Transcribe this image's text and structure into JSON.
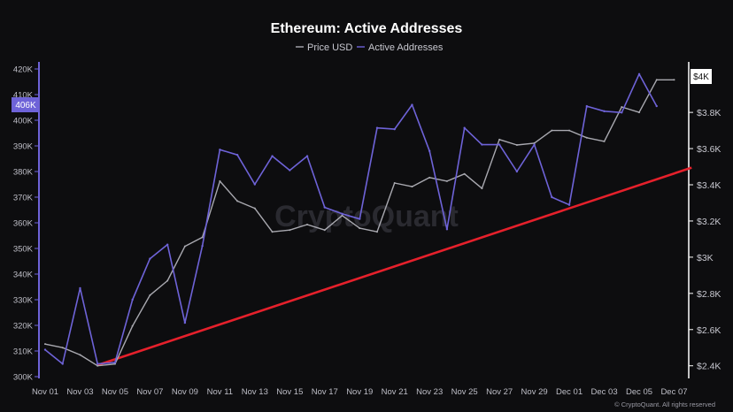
{
  "chart_data": {
    "type": "line",
    "title": "Ethereum: Active Addresses",
    "legend": {
      "placement": "top-center",
      "items": [
        "Price USD",
        "Active Addresses"
      ]
    },
    "x": [
      "Nov 01",
      "Nov 02",
      "Nov 03",
      "Nov 04",
      "Nov 05",
      "Nov 06",
      "Nov 07",
      "Nov 08",
      "Nov 09",
      "Nov 10",
      "Nov 11",
      "Nov 12",
      "Nov 13",
      "Nov 14",
      "Nov 15",
      "Nov 16",
      "Nov 17",
      "Nov 18",
      "Nov 19",
      "Nov 20",
      "Nov 21",
      "Nov 22",
      "Nov 23",
      "Nov 24",
      "Nov 25",
      "Nov 26",
      "Nov 27",
      "Nov 28",
      "Nov 29",
      "Nov 30",
      "Dec 01",
      "Dec 02",
      "Dec 03",
      "Dec 04",
      "Dec 05",
      "Dec 06",
      "Dec 07"
    ],
    "x_tick_labels": [
      "Nov 01",
      "Nov 03",
      "Nov 05",
      "Nov 07",
      "Nov 09",
      "Nov 11",
      "Nov 13",
      "Nov 15",
      "Nov 17",
      "Nov 19",
      "Nov 21",
      "Nov 23",
      "Nov 25",
      "Nov 27",
      "Nov 29",
      "Dec 01",
      "Dec 03",
      "Dec 05",
      "Dec 07"
    ],
    "series": [
      {
        "name": "Active Addresses",
        "axis": "left",
        "color": "#6e63d8",
        "values": [
          310500,
          305000,
          334500,
          305000,
          305500,
          330000,
          346000,
          351500,
          321000,
          351000,
          388500,
          386500,
          375000,
          386000,
          380500,
          386000,
          366000,
          363500,
          361500,
          397000,
          396500,
          406000,
          388000,
          357500,
          397000,
          390500,
          390500,
          380000,
          390500,
          370000,
          367000,
          405500,
          403500,
          403000,
          418000,
          405500,
          null
        ]
      },
      {
        "name": "Price USD",
        "axis": "right",
        "color": "#a9a9b0",
        "values": [
          2520,
          2500,
          2460,
          2400,
          2410,
          2620,
          2790,
          2870,
          3060,
          3110,
          3420,
          3310,
          3270,
          3140,
          3150,
          3180,
          3150,
          3230,
          3160,
          3140,
          3410,
          3390,
          3440,
          3420,
          3460,
          3380,
          3650,
          3620,
          3630,
          3700,
          3700,
          3660,
          3640,
          3830,
          3800,
          3980,
          3980
        ]
      }
    ],
    "trendline": {
      "color": "#e5202b",
      "from": {
        "x": "Nov 04",
        "y": 304500
      },
      "to": {
        "x": "Dec 08",
        "y": 381500
      }
    },
    "y_left": {
      "ylim": [
        300000,
        420000
      ],
      "ticks": [
        300000,
        310000,
        320000,
        330000,
        340000,
        350000,
        360000,
        370000,
        380000,
        390000,
        400000,
        410000,
        420000
      ],
      "tick_labels": [
        "300K",
        "310K",
        "320K",
        "330K",
        "340K",
        "350K",
        "360K",
        "370K",
        "380K",
        "390K",
        "400K",
        "410K",
        "420K"
      ]
    },
    "y_right": {
      "ylim": [
        2340,
        4040
      ],
      "ticks": [
        2400,
        2600,
        2800,
        3000,
        3200,
        3400,
        3600,
        3800
      ],
      "tick_labels": [
        "$2.4K",
        "$2.6K",
        "$2.8K",
        "$3K",
        "$3.2K",
        "$3.4K",
        "$3.6K",
        "$3.8K"
      ]
    },
    "current_value_left": "406K",
    "current_value_right": "$4K",
    "grid": false,
    "watermark": "CryptoQuant",
    "credit": "© CryptoQuant. All rights reserved"
  },
  "colors": {
    "background": "#0d0d0f",
    "axis_left": "#6e63d8",
    "axis_right": "#ffffff",
    "badge_left": "#6e63d8",
    "badge_right": "#ffffff"
  }
}
